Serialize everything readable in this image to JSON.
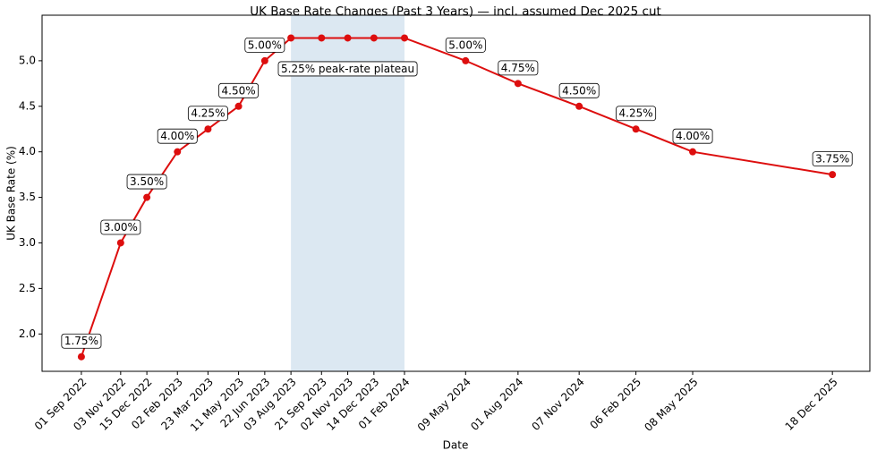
{
  "chart_data": {
    "type": "line",
    "title": "UK Base Rate Changes (Past 3 Years) — incl. assumed Dec 2025 cut",
    "x_label": "Date",
    "y_label": "UK Base Rate (%)",
    "x": [
      "01 Sep 2022",
      "03 Nov 2022",
      "15 Dec 2022",
      "02 Feb 2023",
      "23 Mar 2023",
      "11 May 2023",
      "22 Jun 2023",
      "03 Aug 2023",
      "21 Sep 2023",
      "02 Nov 2023",
      "14 Dec 2023",
      "01 Feb 2024",
      "09 May 2024",
      "01 Aug 2024",
      "07 Nov 2024",
      "06 Feb 2025",
      "08 May 2025",
      "18 Dec 2025"
    ],
    "values": [
      1.75,
      3.0,
      3.5,
      4.0,
      4.25,
      4.5,
      5.0,
      5.25,
      5.25,
      5.25,
      5.25,
      5.25,
      5.0,
      4.75,
      4.5,
      4.25,
      4.0,
      3.75
    ],
    "value_labels": [
      "1.75%",
      "3.00%",
      "3.50%",
      "4.00%",
      "4.25%",
      "4.50%",
      "5.00%",
      null,
      null,
      null,
      null,
      null,
      "5.00%",
      "4.75%",
      "4.50%",
      "4.25%",
      "4.00%",
      "3.75%"
    ],
    "color": "#dd0e0e",
    "xlim": [
      "30 Jun 2022",
      "16 Feb 2026"
    ],
    "ylim": [
      1.59,
      5.5
    ],
    "yticks": [
      {
        "value": 2,
        "label": "2.0"
      },
      {
        "value": 2.5,
        "label": "2.5"
      },
      {
        "value": 3,
        "label": "3.0"
      },
      {
        "value": 3.5,
        "label": "3.5"
      },
      {
        "value": 4,
        "label": "4.0"
      },
      {
        "value": 4.5,
        "label": "4.5"
      },
      {
        "value": 5,
        "label": "5.0"
      }
    ],
    "shaded_span": {
      "x": [
        "03 Aug 2023",
        "01 Feb 2024"
      ],
      "label": "5.25% peak-rate plateau",
      "color": "#dce8f2"
    },
    "grid": false
  }
}
